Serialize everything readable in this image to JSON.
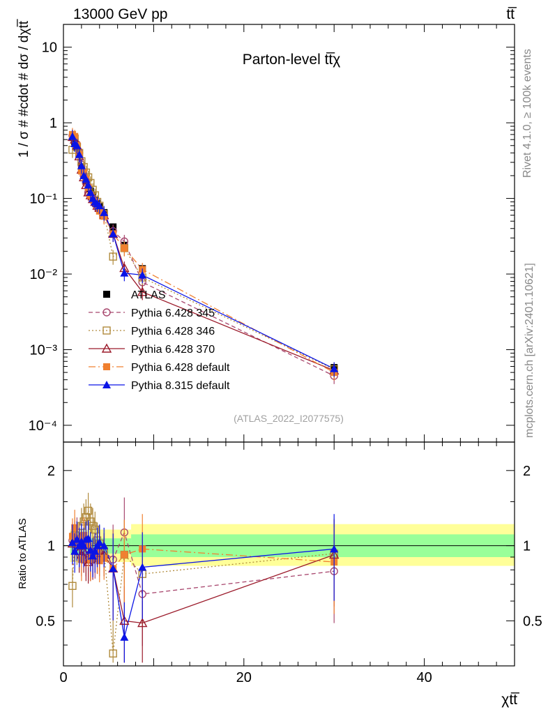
{
  "header": {
    "left_title": "13000 GeV pp",
    "right_title": "tt̅"
  },
  "side_labels": {
    "rivet": "Rivet 4.1.0, ≥ 100k events",
    "mcplots": "mcplots.cern.ch [arXiv:2401.10621]"
  },
  "chart_data": [
    {
      "type": "line",
      "panel": "main",
      "title": "Parton-level tt̅χ",
      "ylabel": "1 / σ # #cdot # dσ / dχtt̅",
      "xlabel": "χtt̅",
      "yscale": "log",
      "xlim": [
        0,
        50
      ],
      "ylim": [
        6e-05,
        20
      ],
      "y_ticks": [
        {
          "v": 0.0001,
          "label": "10⁻⁴"
        },
        {
          "v": 0.001,
          "label": "10⁻³"
        },
        {
          "v": 0.01,
          "label": "10⁻²"
        },
        {
          "v": 0.1,
          "label": "10⁻¹"
        },
        {
          "v": 1,
          "label": "1"
        },
        {
          "v": 10,
          "label": "10"
        }
      ],
      "annotation": "(ATLAS_2022_I2077575)",
      "legend_position": "center-left",
      "x": [
        1.0,
        1.25,
        1.5,
        1.75,
        2.0,
        2.25,
        2.5,
        2.75,
        3.0,
        3.25,
        3.5,
        3.75,
        4.0,
        4.5,
        5.5,
        6.75,
        8.75,
        30.0
      ],
      "series": [
        {
          "name": "ATLAS",
          "color": "#000000",
          "marker": "square-filled",
          "dash": "none",
          "values": [
            0.64,
            0.56,
            0.47,
            0.38,
            0.26,
            0.2,
            0.17,
            0.14,
            0.125,
            0.11,
            0.095,
            0.085,
            0.078,
            0.065,
            0.042,
            0.024,
            0.0118,
            0.00058
          ]
        },
        {
          "name": "Pythia 6.428 345",
          "color": "#a8476e",
          "marker": "circle-open",
          "dash": "6,4",
          "values": [
            0.68,
            0.6,
            0.52,
            0.4,
            0.28,
            0.2,
            0.16,
            0.12,
            0.11,
            0.1,
            0.085,
            0.08,
            0.072,
            0.063,
            0.037,
            0.027,
            0.0078,
            0.00045
          ]
        },
        {
          "name": "Pythia 6.428 346",
          "color": "#b08a3c",
          "marker": "square-open",
          "dash": "2,3",
          "values": [
            0.44,
            0.62,
            0.48,
            0.4,
            0.31,
            0.26,
            0.22,
            0.19,
            0.16,
            0.13,
            0.11,
            0.09,
            0.08,
            0.062,
            0.017,
            0.022,
            0.009,
            0.00055
          ]
        },
        {
          "name": "Pythia 6.428 370",
          "color": "#9b1a2a",
          "marker": "triangle-open",
          "dash": "none",
          "values": [
            0.65,
            0.6,
            0.5,
            0.36,
            0.24,
            0.19,
            0.15,
            0.12,
            0.11,
            0.098,
            0.09,
            0.08,
            0.075,
            0.06,
            0.034,
            0.012,
            0.0058,
            0.00053
          ]
        },
        {
          "name": "Pythia 6.428 default",
          "color": "#f08030",
          "marker": "square-filled",
          "dash": "10,4,2,4",
          "values": [
            0.7,
            0.66,
            0.5,
            0.38,
            0.23,
            0.22,
            0.18,
            0.14,
            0.11,
            0.1,
            0.09,
            0.08,
            0.068,
            0.058,
            0.034,
            0.022,
            0.0115,
            0.0005
          ]
        },
        {
          "name": "Pythia 8.315 default",
          "color": "#0a14e6",
          "marker": "triangle-filled",
          "dash": "none",
          "values": [
            0.66,
            0.53,
            0.5,
            0.38,
            0.27,
            0.2,
            0.18,
            0.15,
            0.12,
            0.1,
            0.09,
            0.085,
            0.08,
            0.065,
            0.034,
            0.0103,
            0.0097,
            0.00056
          ]
        }
      ]
    },
    {
      "type": "line",
      "panel": "ratio",
      "ylabel": "Ratio to ATLAS",
      "xlabel": "χtt̅",
      "yscale": "log",
      "xlim": [
        0,
        50
      ],
      "ylim": [
        0.33,
        2.6
      ],
      "x_ticks": [
        0,
        20,
        40
      ],
      "y_ticks": [
        {
          "v": 0.5,
          "label": "0.5"
        },
        {
          "v": 1,
          "label": "1"
        },
        {
          "v": 2,
          "label": "2"
        }
      ],
      "bands": {
        "stat_color": "#99ff99",
        "syst_color": "#ffff99",
        "ranges": [
          {
            "x0": 0.75,
            "x1": 7.5,
            "green": [
              0.93,
              1.07
            ],
            "yellow": [
              0.86,
              1.16
            ]
          },
          {
            "x0": 7.5,
            "x1": 50,
            "green": [
              0.9,
              1.11
            ],
            "yellow": [
              0.83,
              1.22
            ]
          }
        ]
      },
      "series": [
        {
          "name": "Pythia 6.428 345",
          "values": [
            1.05,
            1.05,
            1.1,
            1.05,
            1.08,
            1.0,
            0.92,
            0.88,
            0.88,
            0.92,
            0.9,
            0.94,
            0.92,
            0.95,
            0.88,
            1.13,
            0.64,
            0.79
          ]
        },
        {
          "name": "Pythia 6.428 346",
          "values": [
            0.69,
            1.1,
            1.02,
            1.05,
            1.2,
            1.25,
            1.3,
            1.38,
            1.25,
            1.2,
            1.16,
            1.05,
            1.02,
            0.95,
            0.37,
            0.92,
            0.77,
            0.93
          ]
        },
        {
          "name": "Pythia 6.428 370",
          "values": [
            1.02,
            1.07,
            1.06,
            0.95,
            0.92,
            0.95,
            0.88,
            0.86,
            0.88,
            0.89,
            0.95,
            0.94,
            0.96,
            0.92,
            0.81,
            0.5,
            0.49,
            0.92
          ]
        },
        {
          "name": "Pythia 6.428 default",
          "values": [
            1.09,
            1.18,
            1.06,
            1.0,
            0.88,
            1.1,
            1.06,
            1.0,
            0.88,
            0.91,
            0.95,
            0.94,
            0.87,
            0.89,
            0.81,
            0.92,
            0.97,
            0.86
          ]
        },
        {
          "name": "Pythia 8.315 default",
          "values": [
            1.03,
            0.95,
            1.06,
            1.0,
            1.04,
            1.0,
            1.06,
            1.07,
            0.96,
            0.91,
            0.95,
            1.0,
            1.03,
            1.0,
            0.81,
            0.43,
            0.82,
            0.97
          ]
        }
      ]
    }
  ]
}
